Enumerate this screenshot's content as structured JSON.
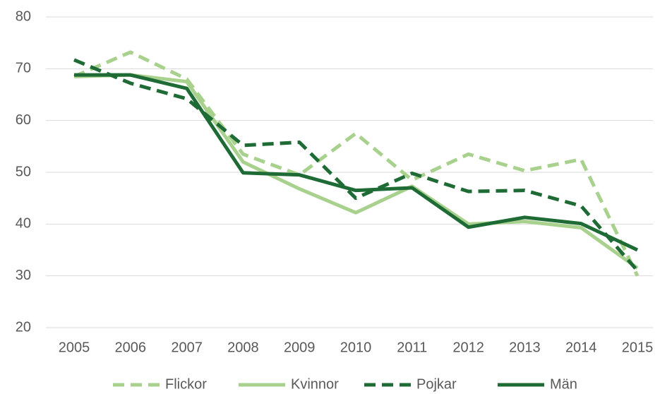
{
  "chart_data": {
    "type": "line",
    "categories": [
      "2005",
      "2006",
      "2007",
      "2008",
      "2009",
      "2010",
      "2011",
      "2012",
      "2013",
      "2014",
      "2015"
    ],
    "series": [
      {
        "name": "Flickor",
        "color": "#a9d18e",
        "dashed": true,
        "values": [
          68.5,
          73.2,
          68,
          53.5,
          49.5,
          57.5,
          48.5,
          53.5,
          50.3,
          52.5,
          30
        ]
      },
      {
        "name": "Kvinnor",
        "color": "#a9d18e",
        "dashed": false,
        "values": [
          68.5,
          68.8,
          67.5,
          52,
          46.8,
          42.2,
          47.3,
          40,
          40.5,
          39.3,
          31.5
        ]
      },
      {
        "name": "Pojkar",
        "color": "#1e6b35",
        "dashed": true,
        "values": [
          71.7,
          67.2,
          64.2,
          55.2,
          55.8,
          45,
          49.8,
          46.3,
          46.5,
          43.5,
          31
        ]
      },
      {
        "name": "Män",
        "color": "#1e6b35",
        "dashed": false,
        "values": [
          68.8,
          68.8,
          66.2,
          49.9,
          49.5,
          46.5,
          47,
          39.4,
          41.3,
          40.1,
          35
        ]
      }
    ],
    "ylim": [
      20,
      80
    ],
    "yticks": [
      20,
      30,
      40,
      50,
      60,
      70,
      80
    ],
    "grid": true,
    "legend": "bottom"
  }
}
